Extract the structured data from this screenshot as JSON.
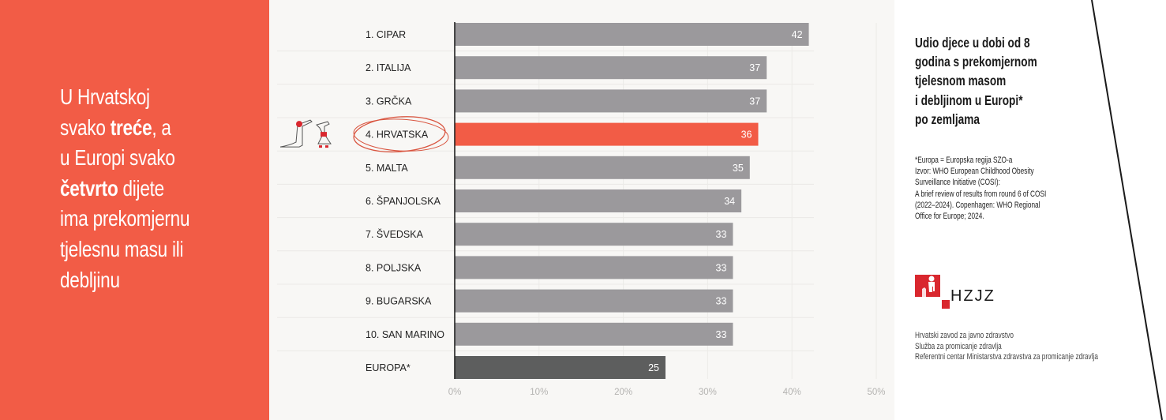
{
  "headline": {
    "parts": [
      {
        "text": "U Hrvatskoj",
        "bold": false,
        "br": true
      },
      {
        "text": "svako ",
        "bold": false
      },
      {
        "text": "treće",
        "bold": true
      },
      {
        "text": ", a",
        "bold": false,
        "br": true
      },
      {
        "text": "u Europi svako",
        "bold": false,
        "br": true
      },
      {
        "text": "četvrto",
        "bold": true
      },
      {
        "text": " dijete",
        "bold": false,
        "br": true
      },
      {
        "text": "ima prekomjernu",
        "bold": false,
        "br": true
      },
      {
        "text": "tjelesnu masu ili",
        "bold": false,
        "br": true
      },
      {
        "text": "debljinu",
        "bold": false
      }
    ]
  },
  "colors": {
    "accent": "#f25c46",
    "bar_default": "#9b999c",
    "bar_highlight": "#f25c46",
    "bar_europe": "#5d5e5e",
    "panel_bg": "#f8f7f5"
  },
  "chart_data": {
    "type": "bar",
    "orientation": "horizontal",
    "title": "Udio djece u dobi od 8 godina s prekomjernom tjelesnom masom i debljinom u Europi* po zemljama",
    "categories": [
      "1. CIPAR",
      "2. ITALIJA",
      "3. GRČKA",
      "4. HRVATSKA",
      "5. MALTA",
      "6. ŠPANJOLSKA",
      "7. ŠVEDSKA",
      "8. POLJSKA",
      "9. BUGARSKA",
      "10. SAN MARINO",
      "EUROPA*"
    ],
    "values": [
      42,
      37,
      37,
      36,
      35,
      34,
      33,
      33,
      33,
      33,
      25
    ],
    "highlight": [
      false,
      false,
      false,
      true,
      false,
      false,
      false,
      false,
      false,
      false,
      false
    ],
    "europe": [
      false,
      false,
      false,
      false,
      false,
      false,
      false,
      false,
      false,
      false,
      true
    ],
    "xlabel": "",
    "ylabel": "",
    "xlim": [
      0,
      50
    ],
    "xticks": [
      0,
      10,
      20,
      30,
      40,
      50
    ],
    "xtick_labels": [
      "0%",
      "10%",
      "20%",
      "30%",
      "40%",
      "50%"
    ],
    "grid": true,
    "annotation": "circle around 4. HRVATSKA with mascot illustration"
  },
  "right": {
    "title_lines": [
      "Udio djece u dobi od 8",
      "godina s prekomjernom",
      "tjelesnom masom",
      "i debljinom u Europi*",
      "po zemljama"
    ],
    "notes_lines": [
      "*Europa = Europska regija SZO-a",
      "Izvor: WHO European Childhood Obesity",
      "Surveillance Initiative (COSI):",
      "A brief review of results from round 6 of COSI",
      "(2022–2024). Copenhagen: WHO Regional",
      "Office for Europe; 2024."
    ],
    "logo_text": "HZJZ",
    "org_lines": [
      "Hrvatski zavod za javno zdravstvo",
      "Služba za promicanje zdravlja",
      "Referentni centar Ministarstva zdravstva za promicanje zdravlja"
    ]
  }
}
